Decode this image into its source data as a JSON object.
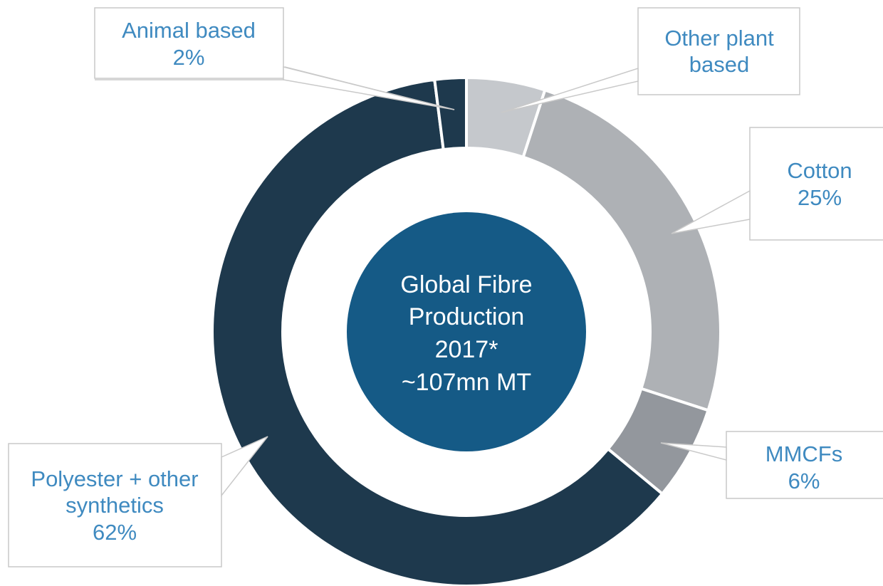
{
  "chart_data": {
    "type": "pie",
    "style": "donut",
    "center_text": [
      "Global Fibre",
      "Production",
      "2017*",
      "~107mn MT"
    ],
    "slices": [
      {
        "name": "Other plant based",
        "label_lines": [
          "Other plant",
          "based"
        ],
        "value": 5,
        "color": "#c5c8cc"
      },
      {
        "name": "Cotton",
        "label_lines": [
          "Cotton",
          "25%"
        ],
        "value": 25,
        "color": "#aeb1b5"
      },
      {
        "name": "MMCFs",
        "label_lines": [
          "MMCFs",
          "6%"
        ],
        "value": 6,
        "color": "#93979d"
      },
      {
        "name": "Polyester + other synthetics",
        "label_lines": [
          "Polyester + other",
          "synthetics",
          "62%"
        ],
        "value": 62,
        "color": "#1e394d"
      },
      {
        "name": "Animal based",
        "label_lines": [
          "Animal based",
          "2%"
        ],
        "value": 2,
        "color": "#1e394d"
      }
    ],
    "colors": {
      "center_fill": "#155a86",
      "label_text": "#3f8ac0",
      "separator": "#ffffff",
      "label_border": "#c9c9c9"
    }
  }
}
